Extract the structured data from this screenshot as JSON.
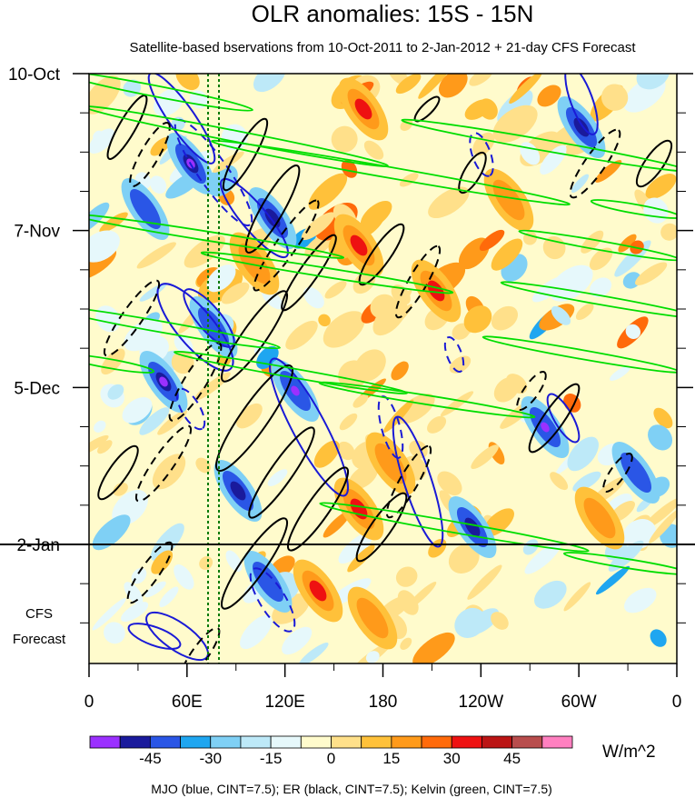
{
  "chart_data": {
    "type": "heatmap",
    "title": "OLR anomalies: 15S - 15N",
    "subtitle": "Satellite-based bservations from 10-Oct-2011 to 2-Jan-2012 + 21-day CFS Forecast",
    "xlabel": "",
    "ylabel": "",
    "x_ticks": [
      "0",
      "60E",
      "120E",
      "180",
      "120W",
      "60W",
      "0"
    ],
    "y_ticks": [
      "10-Oct",
      "7-Nov",
      "5-Dec",
      "2-Jan"
    ],
    "forecast_label_lines": [
      "CFS",
      "Forecast"
    ],
    "units": "W/m^2",
    "colorbar_levels": [
      "-45",
      "-30",
      "-15",
      "0",
      "15",
      "30",
      "45"
    ],
    "colorbar_colors": [
      "#9b30ff",
      "#1a1a9c",
      "#2a56e6",
      "#1fa6f0",
      "#7fd0f5",
      "#bde9f8",
      "#e6f8fb",
      "#fffbcc",
      "#ffe08a",
      "#ffc13a",
      "#ff9a1a",
      "#ff6a0a",
      "#ee1111",
      "#bb1515",
      "#b84d4d",
      "#ff80c0"
    ],
    "legend_text": "MJO (blue, CINT=7.5); ER (black, CINT=7.5); Kelvin (green, CINT=7.5)",
    "series": [
      {
        "name": "MJO",
        "color": "#1a1ad6"
      },
      {
        "name": "ER",
        "color": "#000000"
      },
      {
        "name": "Kelvin",
        "color": "#00dd00"
      }
    ],
    "reference_lines": {
      "observation_end": "2-Jan",
      "vertical_longitudes_deg_e": [
        73,
        80
      ]
    }
  }
}
